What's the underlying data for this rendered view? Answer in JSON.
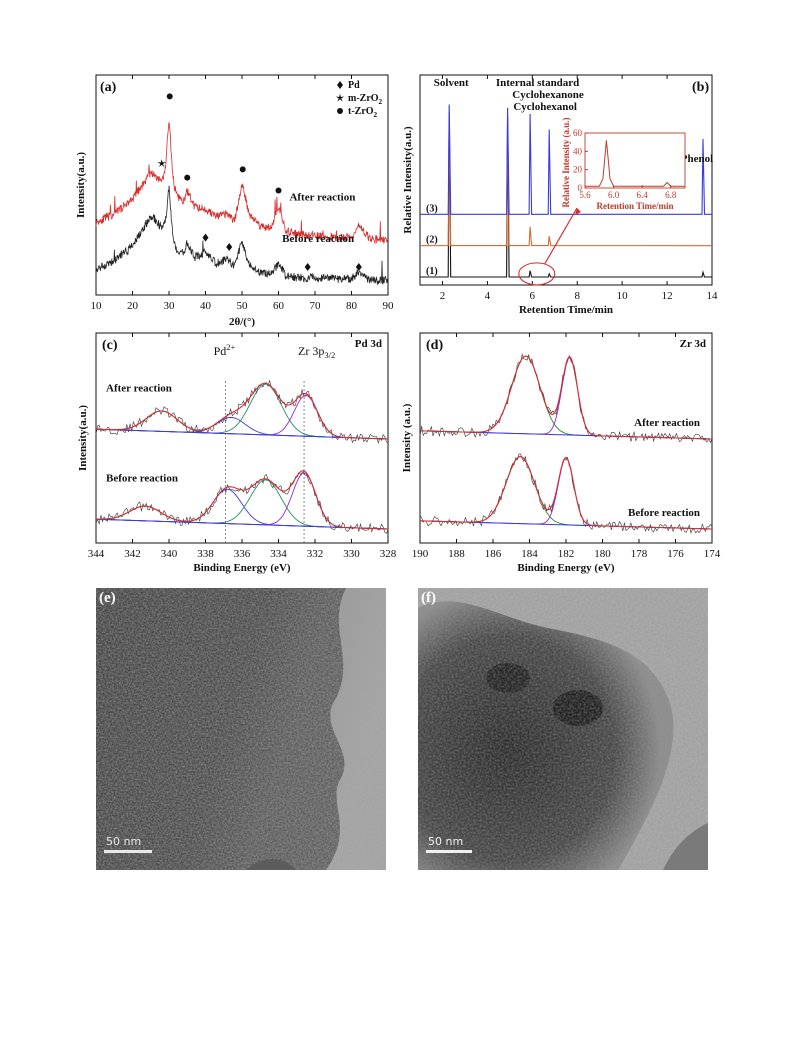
{
  "chart_data": [
    {
      "panel": "(a)",
      "type": "line",
      "xlabel": "2θ/(°)",
      "ylabel": "Intensity(a.u.)",
      "xlim": [
        10,
        90
      ],
      "xticks": [
        10,
        20,
        30,
        40,
        50,
        60,
        70,
        80,
        90
      ],
      "legend": [
        {
          "symbol": "diamond",
          "label": "Pd"
        },
        {
          "symbol": "star",
          "label": "m-ZrO",
          "sub": "2"
        },
        {
          "symbol": "circle",
          "label": "t-ZrO",
          "sub": "2"
        }
      ],
      "series": [
        {
          "name": "After reaction",
          "color": "#d62d2d",
          "x": [
            10,
            15,
            20,
            24,
            25,
            26,
            28,
            29,
            30,
            31,
            32,
            34,
            35,
            37,
            40,
            43,
            46,
            48,
            50,
            52,
            55,
            58,
            60,
            62,
            65,
            70,
            75,
            80,
            82,
            85,
            90
          ],
          "y": [
            0.55,
            0.62,
            0.75,
            0.92,
            0.98,
            0.95,
            0.9,
            1.0,
            1.45,
            0.95,
            0.78,
            0.72,
            0.82,
            0.68,
            0.66,
            0.6,
            0.62,
            0.56,
            0.88,
            0.62,
            0.52,
            0.5,
            0.68,
            0.48,
            0.45,
            0.44,
            0.42,
            0.42,
            0.52,
            0.41,
            0.4
          ]
        },
        {
          "name": "Before reaction",
          "color": "#222222",
          "x": [
            10,
            15,
            20,
            24,
            25,
            26,
            28,
            29,
            30,
            31,
            32,
            34,
            35,
            37,
            40,
            43,
            46,
            48,
            50,
            52,
            55,
            58,
            60,
            62,
            65,
            70,
            75,
            80,
            82,
            85,
            90
          ],
          "y": [
            0.15,
            0.22,
            0.35,
            0.55,
            0.6,
            0.58,
            0.5,
            0.55,
            0.85,
            0.45,
            0.32,
            0.28,
            0.38,
            0.25,
            0.3,
            0.2,
            0.24,
            0.18,
            0.4,
            0.18,
            0.12,
            0.11,
            0.2,
            0.1,
            0.08,
            0.08,
            0.07,
            0.07,
            0.12,
            0.06,
            0.06
          ]
        }
      ],
      "markers": [
        {
          "symbol": "circle",
          "x": 30.2,
          "y": 1.62
        },
        {
          "symbol": "star",
          "x": 28,
          "y": 1.05
        },
        {
          "symbol": "circle",
          "x": 35,
          "y": 0.93
        },
        {
          "symbol": "circle",
          "x": 50.2,
          "y": 1.0
        },
        {
          "symbol": "circle",
          "x": 60,
          "y": 0.82
        },
        {
          "symbol": "diamond",
          "x": 40,
          "y": 0.42
        },
        {
          "symbol": "diamond",
          "x": 46.5,
          "y": 0.34
        },
        {
          "symbol": "diamond",
          "x": 68,
          "y": 0.17
        },
        {
          "symbol": "diamond",
          "x": 82,
          "y": 0.17
        }
      ]
    },
    {
      "panel": "(b)",
      "type": "line",
      "xlabel": "Retention Time/min",
      "ylabel": "Relative Intensity(a.u.)",
      "xlim": [
        1,
        14
      ],
      "xticks": [
        2,
        4,
        6,
        8,
        10,
        12,
        14
      ],
      "traces": [
        {
          "name": "(1)",
          "color": "#111111",
          "baseline": 0.0,
          "peaks": [
            {
              "x": 2.3,
              "h": 1.05
            },
            {
              "x": 4.9,
              "h": 1.02
            },
            {
              "x": 5.9,
              "h": 0.04
            },
            {
              "x": 6.75,
              "h": 0.02
            },
            {
              "x": 13.6,
              "h": 0.03
            }
          ]
        },
        {
          "name": "(2)",
          "color": "#d9682e",
          "baseline": 0.2,
          "peaks": [
            {
              "x": 2.3,
              "h": 0.85
            },
            {
              "x": 4.9,
              "h": 0.82
            },
            {
              "x": 5.9,
              "h": 0.12
            },
            {
              "x": 6.75,
              "h": 0.06
            }
          ]
        },
        {
          "name": "(3)",
          "color": "#3a3adf",
          "baseline": 0.4,
          "peaks": [
            {
              "x": 2.3,
              "h": 0.7
            },
            {
              "x": 4.9,
              "h": 0.68
            },
            {
              "x": 5.9,
              "h": 0.64
            },
            {
              "x": 6.75,
              "h": 0.54
            },
            {
              "x": 13.6,
              "h": 0.48
            }
          ]
        }
      ],
      "peak_labels": [
        {
          "text": "Solvent",
          "x": 2.3
        },
        {
          "text": "Internal standard",
          "x": 4.9
        },
        {
          "text": "Cyclohexanone",
          "x": 5.9
        },
        {
          "text": "Cyclohexanol",
          "x": 6.75
        },
        {
          "text": "Phenol",
          "x": 13.6
        }
      ],
      "inset": {
        "xlabel": "Retention Time/min",
        "ylabel": "Relative Intensity (a.u.)",
        "xlim": [
          5.6,
          7.0
        ],
        "ylim": [
          0,
          60
        ],
        "xticks": [
          5.6,
          6.0,
          6.4,
          6.8
        ],
        "yticks": [
          0,
          20,
          40,
          60
        ],
        "color": "#c0392b",
        "x": [
          5.6,
          5.8,
          5.85,
          5.88,
          5.9,
          5.92,
          5.95,
          6.0,
          6.3,
          6.7,
          6.75,
          6.8,
          6.9,
          7.0
        ],
        "y": [
          2,
          2,
          10,
          35,
          52,
          35,
          10,
          2,
          2,
          2,
          6,
          2,
          2,
          2
        ]
      }
    },
    {
      "panel": "(c)",
      "type": "line",
      "title": "Pd 3d",
      "xlabel": "Binding Energy (eV)",
      "ylabel": "Intensity(a.u.)",
      "xlim": [
        344,
        328
      ],
      "reversed_x": true,
      "xticks": [
        344,
        342,
        340,
        338,
        336,
        334,
        332,
        330,
        328
      ],
      "annotations": [
        {
          "text": "Pd",
          "sup": "2+",
          "x": 336.9
        },
        {
          "text": "Zr 3p",
          "sub": "3/2",
          "x": 332.6
        }
      ],
      "groups": [
        {
          "name": "After reaction",
          "offset": 1.1,
          "peaks": [
            {
              "c": 340.4,
              "a": 0.25
            },
            {
              "c": 336.6,
              "a": 0.2
            },
            {
              "c": 334.7,
              "a": 0.62
            },
            {
              "c": 332.5,
              "a": 0.5
            }
          ]
        },
        {
          "name": "Before reaction",
          "offset": 0.0,
          "peaks": [
            {
              "c": 341.3,
              "a": 0.18
            },
            {
              "c": 336.8,
              "a": 0.42
            },
            {
              "c": 334.7,
              "a": 0.55
            },
            {
              "c": 332.6,
              "a": 0.65
            }
          ]
        }
      ]
    },
    {
      "panel": "(d)",
      "type": "line",
      "title": "Zr 3d",
      "xlabel": "Binding Energy (eV)",
      "ylabel": "Intensity (a.u.)",
      "xlim": [
        190,
        174
      ],
      "reversed_x": true,
      "xticks": [
        190,
        188,
        186,
        184,
        182,
        180,
        178,
        176,
        174
      ],
      "groups": [
        {
          "name": "After reaction",
          "offset": 1.1,
          "peaks": [
            {
              "c": 184.2,
              "a": 0.95
            },
            {
              "c": 181.8,
              "a": 0.95
            }
          ]
        },
        {
          "name": "Before reaction",
          "offset": 0.0,
          "peaks": [
            {
              "c": 184.5,
              "a": 0.82
            },
            {
              "c": 182.0,
              "a": 0.82
            }
          ]
        }
      ]
    }
  ],
  "tem": [
    {
      "panel": "(e)",
      "scale_bar": "50 nm"
    },
    {
      "panel": "(f)",
      "scale_bar": "50 nm"
    }
  ]
}
